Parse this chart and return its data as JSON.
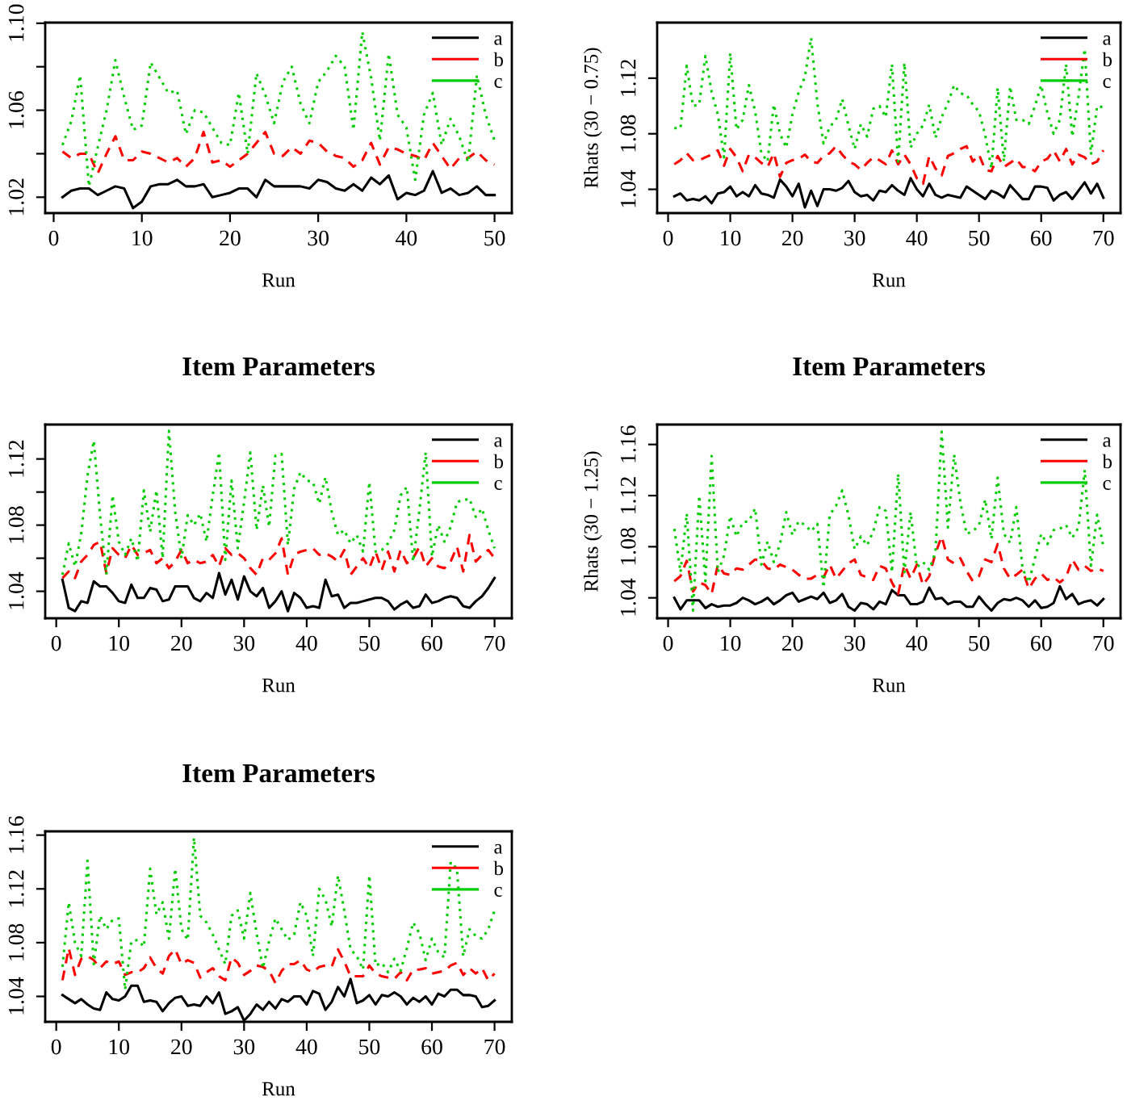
{
  "chart_data": [
    {
      "type": "line",
      "xlabel": "Run",
      "x": [
        1,
        2,
        3,
        4,
        5,
        6,
        7,
        8,
        9,
        10,
        11,
        12,
        13,
        14,
        15,
        16,
        17,
        18,
        19,
        20,
        21,
        22,
        23,
        24,
        25,
        26,
        27,
        28,
        29,
        30,
        31,
        32,
        33,
        34,
        35,
        36,
        37,
        38,
        39,
        40,
        41,
        42,
        43,
        44,
        45,
        46,
        47,
        48,
        49,
        50
      ],
      "xlim": [
        -0.96,
        51.96
      ],
      "xticks": [
        0,
        10,
        20,
        30,
        40,
        50
      ],
      "ylim": [
        1.0127,
        1.1003
      ],
      "yticks": [
        1.02,
        {
          "value": 1.04,
          "label": null
        },
        1.06,
        {
          "value": 1.08,
          "label": null
        },
        {
          "value": 1.1,
          "label": "1.10"
        }
      ],
      "grid": false,
      "legend": "top right",
      "series": [
        {
          "name": "a",
          "color": "#000000",
          "line_style": "solid",
          "values": [
            1.02,
            1.023,
            1.024,
            1.024,
            1.021,
            1.023,
            1.025,
            1.024,
            1.015,
            1.018,
            1.025,
            1.026,
            1.026,
            1.028,
            1.025,
            1.025,
            1.026,
            1.02,
            1.021,
            1.022,
            1.024,
            1.024,
            1.02,
            1.028,
            1.025,
            1.025,
            1.025,
            1.025,
            1.024,
            1.028,
            1.027,
            1.024,
            1.023,
            1.026,
            1.023,
            1.029,
            1.026,
            1.03,
            1.019,
            1.022,
            1.021,
            1.023,
            1.032,
            1.022,
            1.024,
            1.021,
            1.022,
            1.025,
            1.021,
            1.021
          ]
        },
        {
          "name": "b",
          "color": "#ff0000",
          "line_style": "dashed",
          "values": [
            1.041,
            1.038,
            1.04,
            1.04,
            1.031,
            1.04,
            1.048,
            1.037,
            1.037,
            1.041,
            1.04,
            1.038,
            1.036,
            1.038,
            1.034,
            1.038,
            1.05,
            1.036,
            1.037,
            1.034,
            1.037,
            1.04,
            1.045,
            1.05,
            1.04,
            1.039,
            1.043,
            1.04,
            1.046,
            1.045,
            1.041,
            1.039,
            1.038,
            1.034,
            1.037,
            1.045,
            1.035,
            1.043,
            1.042,
            1.04,
            1.039,
            1.037,
            1.045,
            1.039,
            1.033,
            1.038,
            1.038,
            1.041,
            1.037,
            1.035
          ]
        },
        {
          "name": "c",
          "color": "#00cd00",
          "line_style": "dotted",
          "values": [
            1.044,
            1.055,
            1.076,
            1.025,
            1.043,
            1.06,
            1.083,
            1.066,
            1.051,
            1.053,
            1.082,
            1.075,
            1.068,
            1.069,
            1.049,
            1.06,
            1.059,
            1.052,
            1.045,
            1.044,
            1.068,
            1.04,
            1.077,
            1.067,
            1.054,
            1.073,
            1.08,
            1.063,
            1.054,
            1.073,
            1.078,
            1.085,
            1.08,
            1.051,
            1.096,
            1.075,
            1.046,
            1.086,
            1.058,
            1.052,
            1.028,
            1.058,
            1.068,
            1.044,
            1.056,
            1.048,
            1.036,
            1.076,
            1.058,
            1.046
          ]
        }
      ]
    },
    {
      "type": "line",
      "xlabel": "Run",
      "ylabel": "Rhats (30 − 0.75)",
      "x": [
        1,
        2,
        3,
        4,
        5,
        6,
        7,
        8,
        9,
        10,
        11,
        12,
        13,
        14,
        15,
        16,
        17,
        18,
        19,
        20,
        21,
        22,
        23,
        24,
        25,
        26,
        27,
        28,
        29,
        30,
        31,
        32,
        33,
        34,
        35,
        36,
        37,
        38,
        39,
        40,
        41,
        42,
        43,
        44,
        45,
        46,
        47,
        48,
        49,
        50,
        51,
        52,
        53,
        54,
        55,
        56,
        57,
        58,
        59,
        60,
        61,
        62,
        63,
        64,
        65,
        66,
        67,
        68,
        69,
        70
      ],
      "xlim": [
        -1.76,
        72.76
      ],
      "xticks": [
        0,
        10,
        20,
        30,
        40,
        50,
        60,
        70
      ],
      "ylim": [
        1.0229,
        1.16
      ],
      "yticks": [
        1.04,
        1.08,
        1.12
      ],
      "grid": false,
      "legend": "top right",
      "series": [
        {
          "name": "a",
          "color": "#000000",
          "line_style": "solid",
          "values": [
            1.035,
            1.037,
            1.032,
            1.033,
            1.032,
            1.035,
            1.03,
            1.037,
            1.038,
            1.042,
            1.035,
            1.038,
            1.035,
            1.043,
            1.037,
            1.036,
            1.034,
            1.047,
            1.042,
            1.035,
            1.044,
            1.027,
            1.039,
            1.028,
            1.04,
            1.04,
            1.039,
            1.041,
            1.046,
            1.038,
            1.035,
            1.036,
            1.032,
            1.039,
            1.038,
            1.043,
            1.039,
            1.036,
            1.048,
            1.04,
            1.035,
            1.044,
            1.036,
            1.034,
            1.036,
            1.035,
            1.034,
            1.042,
            1.039,
            1.036,
            1.033,
            1.039,
            1.037,
            1.034,
            1.043,
            1.038,
            1.033,
            1.033,
            1.042,
            1.042,
            1.041,
            1.032,
            1.036,
            1.038,
            1.033,
            1.039,
            1.045,
            1.037,
            1.044,
            1.034
          ]
        },
        {
          "name": "b",
          "color": "#ff0000",
          "line_style": "dashed",
          "values": [
            1.058,
            1.061,
            1.066,
            1.061,
            1.061,
            1.063,
            1.065,
            1.068,
            1.057,
            1.069,
            1.063,
            1.053,
            1.065,
            1.063,
            1.059,
            1.056,
            1.066,
            1.049,
            1.059,
            1.061,
            1.062,
            1.065,
            1.06,
            1.059,
            1.064,
            1.066,
            1.071,
            1.065,
            1.06,
            1.058,
            1.054,
            1.059,
            1.063,
            1.061,
            1.058,
            1.068,
            1.058,
            1.065,
            1.058,
            1.048,
            1.044,
            1.064,
            1.055,
            1.05,
            1.064,
            1.066,
            1.069,
            1.071,
            1.06,
            1.065,
            1.054,
            1.053,
            1.064,
            1.056,
            1.059,
            1.062,
            1.056,
            1.056,
            1.053,
            1.06,
            1.062,
            1.068,
            1.06,
            1.069,
            1.058,
            1.065,
            1.063,
            1.058,
            1.06,
            1.068
          ]
        },
        {
          "name": "c",
          "color": "#00cd00",
          "line_style": "dotted",
          "values": [
            1.084,
            1.084,
            1.129,
            1.1,
            1.101,
            1.136,
            1.11,
            1.094,
            1.063,
            1.138,
            1.083,
            1.09,
            1.115,
            1.096,
            1.066,
            1.06,
            1.101,
            1.08,
            1.07,
            1.094,
            1.11,
            1.121,
            1.149,
            1.102,
            1.073,
            1.085,
            1.09,
            1.105,
            1.086,
            1.069,
            1.087,
            1.078,
            1.098,
            1.1,
            1.092,
            1.13,
            1.06,
            1.131,
            1.07,
            1.08,
            1.086,
            1.101,
            1.077,
            1.092,
            1.102,
            1.115,
            1.109,
            1.108,
            1.101,
            1.096,
            1.079,
            1.055,
            1.113,
            1.06,
            1.114,
            1.09,
            1.09,
            1.087,
            1.1,
            1.115,
            1.095,
            1.08,
            1.09,
            1.13,
            1.078,
            1.107,
            1.141,
            1.065,
            1.1,
            1.099
          ]
        }
      ]
    },
    {
      "type": "line",
      "title": "Item Parameters",
      "xlabel": "Run",
      "x": [
        1,
        2,
        3,
        4,
        5,
        6,
        7,
        8,
        9,
        10,
        11,
        12,
        13,
        14,
        15,
        16,
        17,
        18,
        19,
        20,
        21,
        22,
        23,
        24,
        25,
        26,
        27,
        28,
        29,
        30,
        31,
        32,
        33,
        34,
        35,
        36,
        37,
        38,
        39,
        40,
        41,
        42,
        43,
        44,
        45,
        46,
        47,
        48,
        49,
        50,
        51,
        52,
        53,
        54,
        55,
        56,
        57,
        58,
        59,
        60,
        61,
        62,
        63,
        64,
        65,
        66,
        67,
        68,
        69,
        70
      ],
      "xlim": [
        -1.76,
        72.76
      ],
      "xticks": [
        0,
        10,
        20,
        30,
        40,
        50,
        60,
        70
      ],
      "ylim": [
        1.0237,
        1.1408
      ],
      "yticks": [
        1.04,
        {
          "value": 1.06,
          "label": null
        },
        1.08,
        {
          "value": 1.1,
          "label": null
        },
        1.12
      ],
      "grid": false,
      "legend": "top right",
      "series": [
        {
          "name": "a",
          "color": "#000000",
          "line_style": "solid",
          "values": [
            1.047,
            1.03,
            1.028,
            1.034,
            1.033,
            1.046,
            1.043,
            1.043,
            1.039,
            1.034,
            1.033,
            1.044,
            1.036,
            1.036,
            1.042,
            1.041,
            1.034,
            1.035,
            1.043,
            1.043,
            1.043,
            1.036,
            1.034,
            1.039,
            1.036,
            1.051,
            1.038,
            1.047,
            1.035,
            1.049,
            1.04,
            1.037,
            1.042,
            1.03,
            1.034,
            1.04,
            1.028,
            1.039,
            1.036,
            1.03,
            1.031,
            1.03,
            1.047,
            1.037,
            1.038,
            1.03,
            1.033,
            1.033,
            1.034,
            1.035,
            1.036,
            1.036,
            1.034,
            1.029,
            1.032,
            1.034,
            1.03,
            1.031,
            1.038,
            1.033,
            1.034,
            1.036,
            1.037,
            1.036,
            1.031,
            1.03,
            1.034,
            1.037,
            1.042,
            1.048
          ]
        },
        {
          "name": "b",
          "color": "#ff0000",
          "line_style": "dashed",
          "values": [
            1.048,
            1.052,
            1.048,
            1.058,
            1.062,
            1.068,
            1.07,
            1.051,
            1.066,
            1.062,
            1.06,
            1.068,
            1.062,
            1.063,
            1.065,
            1.057,
            1.06,
            1.054,
            1.058,
            1.065,
            1.057,
            1.059,
            1.057,
            1.058,
            1.062,
            1.055,
            1.066,
            1.062,
            1.063,
            1.06,
            1.054,
            1.05,
            1.06,
            1.059,
            1.063,
            1.072,
            1.05,
            1.062,
            1.064,
            1.065,
            1.066,
            1.062,
            1.063,
            1.061,
            1.058,
            1.065,
            1.05,
            1.055,
            1.06,
            1.054,
            1.064,
            1.053,
            1.064,
            1.052,
            1.065,
            1.057,
            1.06,
            1.067,
            1.055,
            1.06,
            1.055,
            1.054,
            1.058,
            1.067,
            1.052,
            1.074,
            1.058,
            1.062,
            1.065,
            1.06
          ]
        },
        {
          "name": "c",
          "color": "#00cd00",
          "line_style": "dotted",
          "values": [
            1.05,
            1.069,
            1.055,
            1.075,
            1.11,
            1.131,
            1.086,
            1.05,
            1.098,
            1.07,
            1.062,
            1.072,
            1.058,
            1.101,
            1.076,
            1.101,
            1.06,
            1.137,
            1.088,
            1.06,
            1.086,
            1.08,
            1.087,
            1.07,
            1.098,
            1.124,
            1.059,
            1.107,
            1.066,
            1.094,
            1.124,
            1.077,
            1.104,
            1.079,
            1.122,
            1.123,
            1.068,
            1.102,
            1.112,
            1.107,
            1.106,
            1.093,
            1.109,
            1.088,
            1.074,
            1.077,
            1.069,
            1.074,
            1.064,
            1.106,
            1.064,
            1.065,
            1.069,
            1.077,
            1.098,
            1.103,
            1.058,
            1.089,
            1.124,
            1.061,
            1.08,
            1.07,
            1.079,
            1.094,
            1.095,
            1.096,
            1.085,
            1.09,
            1.077,
            1.066
          ]
        }
      ]
    },
    {
      "type": "line",
      "title": "Item Parameters",
      "xlabel": "Run",
      "ylabel": "Rhats (30 − 1.25)",
      "x": [
        1,
        2,
        3,
        4,
        5,
        6,
        7,
        8,
        9,
        10,
        11,
        12,
        13,
        14,
        15,
        16,
        17,
        18,
        19,
        20,
        21,
        22,
        23,
        24,
        25,
        26,
        27,
        28,
        29,
        30,
        31,
        32,
        33,
        34,
        35,
        36,
        37,
        38,
        39,
        40,
        41,
        42,
        43,
        44,
        45,
        46,
        47,
        48,
        49,
        50,
        51,
        52,
        53,
        54,
        55,
        56,
        57,
        58,
        59,
        60,
        61,
        62,
        63,
        64,
        65,
        66,
        67,
        68,
        69,
        70
      ],
      "xlim": [
        -1.76,
        72.76
      ],
      "xticks": [
        0,
        10,
        20,
        30,
        40,
        50,
        60,
        70
      ],
      "ylim": [
        1.024,
        1.1756
      ],
      "yticks": [
        1.04,
        1.08,
        1.12,
        1.16
      ],
      "grid": false,
      "legend": "top right",
      "series": [
        {
          "name": "a",
          "color": "#000000",
          "line_style": "solid",
          "values": [
            1.04,
            1.031,
            1.038,
            1.038,
            1.038,
            1.032,
            1.035,
            1.033,
            1.034,
            1.034,
            1.036,
            1.04,
            1.038,
            1.035,
            1.037,
            1.04,
            1.035,
            1.038,
            1.042,
            1.044,
            1.037,
            1.039,
            1.041,
            1.039,
            1.044,
            1.036,
            1.038,
            1.043,
            1.033,
            1.03,
            1.036,
            1.035,
            1.031,
            1.037,
            1.035,
            1.046,
            1.042,
            1.042,
            1.035,
            1.035,
            1.037,
            1.048,
            1.039,
            1.04,
            1.035,
            1.037,
            1.037,
            1.033,
            1.033,
            1.041,
            1.035,
            1.03,
            1.036,
            1.039,
            1.038,
            1.04,
            1.038,
            1.033,
            1.038,
            1.032,
            1.033,
            1.036,
            1.049,
            1.039,
            1.043,
            1.035,
            1.037,
            1.038,
            1.034,
            1.039
          ]
        },
        {
          "name": "b",
          "color": "#ff0000",
          "line_style": "dashed",
          "values": [
            1.053,
            1.057,
            1.069,
            1.045,
            1.052,
            1.05,
            1.043,
            1.066,
            1.059,
            1.058,
            1.063,
            1.062,
            1.066,
            1.07,
            1.069,
            1.063,
            1.062,
            1.066,
            1.064,
            1.062,
            1.058,
            1.055,
            1.055,
            1.058,
            1.056,
            1.066,
            1.055,
            1.061,
            1.067,
            1.07,
            1.058,
            1.056,
            1.054,
            1.065,
            1.063,
            1.052,
            1.043,
            1.066,
            1.055,
            1.066,
            1.05,
            1.057,
            1.075,
            1.088,
            1.07,
            1.067,
            1.071,
            1.061,
            1.053,
            1.057,
            1.07,
            1.068,
            1.082,
            1.063,
            1.055,
            1.058,
            1.062,
            1.047,
            1.055,
            1.059,
            1.054,
            1.056,
            1.052,
            1.056,
            1.07,
            1.062,
            1.065,
            1.061,
            1.063,
            1.061
          ]
        },
        {
          "name": "c",
          "color": "#00cd00",
          "line_style": "dotted",
          "values": [
            1.094,
            1.06,
            1.106,
            1.03,
            1.12,
            1.053,
            1.151,
            1.06,
            1.073,
            1.104,
            1.088,
            1.099,
            1.1,
            1.11,
            1.066,
            1.084,
            1.068,
            1.082,
            1.107,
            1.089,
            1.1,
            1.097,
            1.092,
            1.098,
            1.048,
            1.105,
            1.112,
            1.124,
            1.105,
            1.078,
            1.088,
            1.081,
            1.092,
            1.111,
            1.108,
            1.06,
            1.137,
            1.06,
            1.107,
            1.064,
            1.068,
            1.062,
            1.076,
            1.17,
            1.095,
            1.152,
            1.115,
            1.09,
            1.092,
            1.097,
            1.117,
            1.086,
            1.134,
            1.09,
            1.083,
            1.111,
            1.063,
            1.052,
            1.071,
            1.09,
            1.082,
            1.093,
            1.094,
            1.097,
            1.087,
            1.095,
            1.14,
            1.065,
            1.105,
            1.08
          ]
        }
      ]
    },
    {
      "type": "line",
      "title": "Item Parameters",
      "xlabel": "Run",
      "x": [
        1,
        2,
        3,
        4,
        5,
        6,
        7,
        8,
        9,
        10,
        11,
        12,
        13,
        14,
        15,
        16,
        17,
        18,
        19,
        20,
        21,
        22,
        23,
        24,
        25,
        26,
        27,
        28,
        29,
        30,
        31,
        32,
        33,
        34,
        35,
        36,
        37,
        38,
        39,
        40,
        41,
        42,
        43,
        44,
        45,
        46,
        47,
        48,
        49,
        50,
        51,
        52,
        53,
        54,
        55,
        56,
        57,
        58,
        59,
        60,
        61,
        62,
        63,
        64,
        65,
        66,
        67,
        68,
        69,
        70
      ],
      "xlim": [
        -1.76,
        72.76
      ],
      "xticks": [
        0,
        10,
        20,
        30,
        40,
        50,
        60,
        70
      ],
      "ylim": [
        1.0211,
        1.1628
      ],
      "yticks": [
        1.04,
        1.08,
        1.12,
        1.16
      ],
      "grid": false,
      "legend": "top right",
      "series": [
        {
          "name": "a",
          "color": "#000000",
          "line_style": "solid",
          "values": [
            1.041,
            1.038,
            1.035,
            1.038,
            1.034,
            1.031,
            1.03,
            1.043,
            1.038,
            1.037,
            1.04,
            1.048,
            1.048,
            1.036,
            1.037,
            1.036,
            1.029,
            1.035,
            1.039,
            1.04,
            1.033,
            1.034,
            1.033,
            1.04,
            1.035,
            1.043,
            1.027,
            1.029,
            1.032,
            1.022,
            1.027,
            1.034,
            1.03,
            1.036,
            1.031,
            1.038,
            1.036,
            1.04,
            1.04,
            1.034,
            1.044,
            1.042,
            1.03,
            1.036,
            1.047,
            1.04,
            1.053,
            1.035,
            1.037,
            1.041,
            1.034,
            1.041,
            1.04,
            1.043,
            1.04,
            1.034,
            1.039,
            1.036,
            1.04,
            1.034,
            1.042,
            1.04,
            1.045,
            1.045,
            1.041,
            1.041,
            1.04,
            1.032,
            1.033,
            1.037
          ]
        },
        {
          "name": "b",
          "color": "#ff0000",
          "line_style": "dashed",
          "values": [
            1.052,
            1.076,
            1.056,
            1.068,
            1.07,
            1.067,
            1.061,
            1.066,
            1.064,
            1.066,
            1.056,
            1.058,
            1.058,
            1.061,
            1.069,
            1.061,
            1.057,
            1.07,
            1.075,
            1.064,
            1.067,
            1.065,
            1.054,
            1.058,
            1.061,
            1.055,
            1.052,
            1.069,
            1.065,
            1.056,
            1.059,
            1.063,
            1.062,
            1.059,
            1.05,
            1.059,
            1.064,
            1.064,
            1.067,
            1.06,
            1.058,
            1.062,
            1.063,
            1.062,
            1.075,
            1.066,
            1.055,
            1.055,
            1.055,
            1.063,
            1.057,
            1.055,
            1.054,
            1.053,
            1.058,
            1.052,
            1.06,
            1.06,
            1.061,
            1.057,
            1.058,
            1.059,
            1.063,
            1.065,
            1.056,
            1.061,
            1.057,
            1.061,
            1.052,
            1.057
          ]
        },
        {
          "name": "c",
          "color": "#00cd00",
          "line_style": "dotted",
          "values": [
            1.062,
            1.11,
            1.08,
            1.07,
            1.141,
            1.064,
            1.1,
            1.09,
            1.097,
            1.098,
            1.045,
            1.081,
            1.082,
            1.077,
            1.135,
            1.101,
            1.11,
            1.083,
            1.135,
            1.09,
            1.082,
            1.158,
            1.1,
            1.095,
            1.086,
            1.075,
            1.064,
            1.1,
            1.104,
            1.083,
            1.117,
            1.087,
            1.061,
            1.081,
            1.098,
            1.09,
            1.082,
            1.086,
            1.11,
            1.1,
            1.07,
            1.12,
            1.112,
            1.092,
            1.13,
            1.104,
            1.075,
            1.07,
            1.06,
            1.13,
            1.063,
            1.065,
            1.058,
            1.068,
            1.059,
            1.076,
            1.095,
            1.087,
            1.067,
            1.083,
            1.073,
            1.069,
            1.14,
            1.135,
            1.07,
            1.09,
            1.085,
            1.083,
            1.09,
            1.104
          ]
        }
      ]
    }
  ]
}
